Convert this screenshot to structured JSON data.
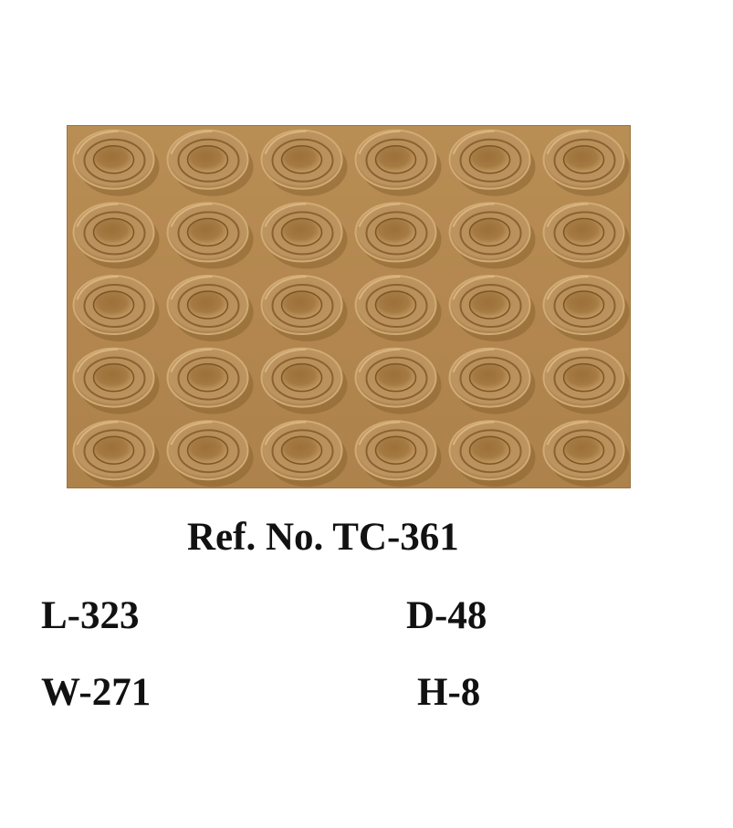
{
  "product": {
    "ref_label": "Ref. No. TC-361",
    "length": "L-323",
    "depth": "D-48",
    "width": "W-271",
    "height": "H-8"
  },
  "tray": {
    "rows": 5,
    "columns": 6,
    "color": "#b3874f"
  }
}
